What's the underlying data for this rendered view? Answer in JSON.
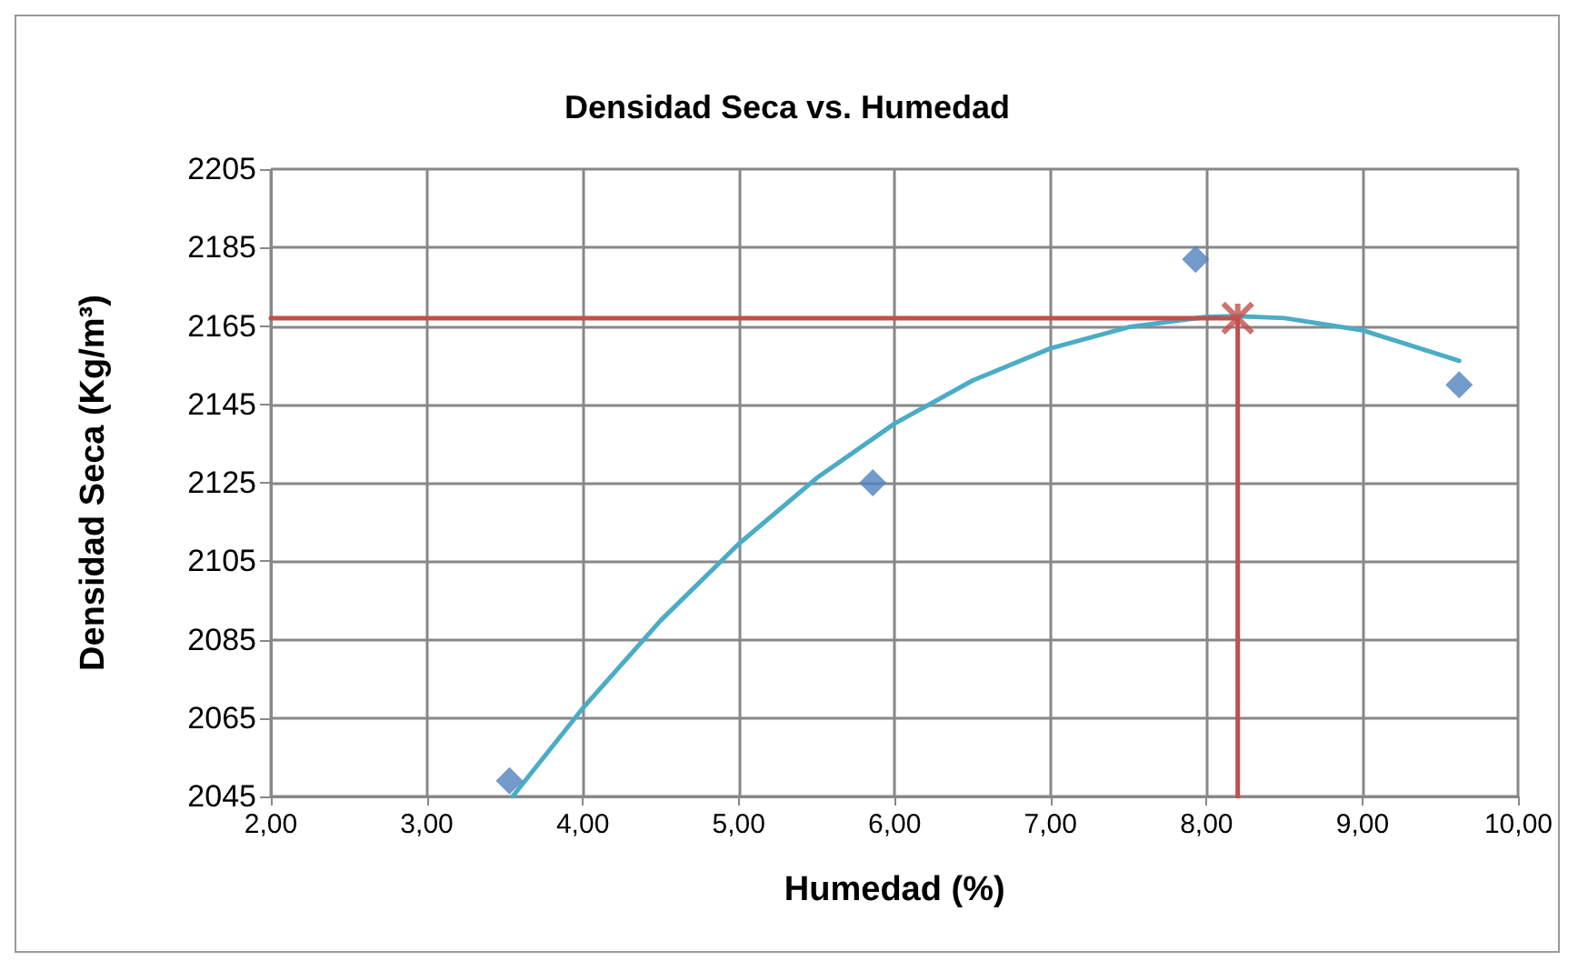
{
  "chart_data": {
    "type": "scatter",
    "title": "Densidad Seca vs. Humedad",
    "xlabel": "Humedad (%)",
    "ylabel": "Densidad Seca (Kg/m³)",
    "xlim": [
      2,
      10
    ],
    "xticks": [
      {
        "value": 2,
        "label": "2,00"
      },
      {
        "value": 3,
        "label": "3,00"
      },
      {
        "value": 4,
        "label": "4,00"
      },
      {
        "value": 5,
        "label": "5,00"
      },
      {
        "value": 6,
        "label": "6,00"
      },
      {
        "value": 7,
        "label": "7,00"
      },
      {
        "value": 8,
        "label": "8,00"
      },
      {
        "value": 9,
        "label": "9,00"
      },
      {
        "value": 10,
        "label": "10,00"
      }
    ],
    "ylim": [
      2045,
      2205
    ],
    "yticks": [
      2045,
      2065,
      2085,
      2105,
      2125,
      2145,
      2165,
      2185,
      2205
    ],
    "grid": true,
    "series": [
      {
        "type": "line",
        "color": "#4bacc6",
        "marker": "none",
        "x": [
          3.55,
          4,
          4.5,
          5,
          5.5,
          6,
          6.5,
          7,
          7.5,
          8,
          8.2,
          8.5,
          9,
          9.62
        ],
        "values": [
          2045,
          2067.5,
          2089.9,
          2109.4,
          2126.2,
          2140.1,
          2151.1,
          2159.3,
          2164.7,
          2167.3,
          2167.5,
          2167,
          2163.9,
          2156.1
        ]
      },
      {
        "type": "line",
        "color": "#c0504d",
        "marker": "none",
        "x": [
          2,
          8.2,
          8.2
        ],
        "values": [
          2167,
          2167,
          2045
        ]
      },
      {
        "color": "#4f81bd",
        "marker": "diamond",
        "x": [
          3.53,
          5.86,
          7.93,
          9.62
        ],
        "values": [
          2049,
          2125,
          2182,
          2150
        ]
      },
      {
        "color": "#c0504d",
        "marker": "cross",
        "x": [
          8.2
        ],
        "values": [
          2167
        ]
      }
    ]
  }
}
